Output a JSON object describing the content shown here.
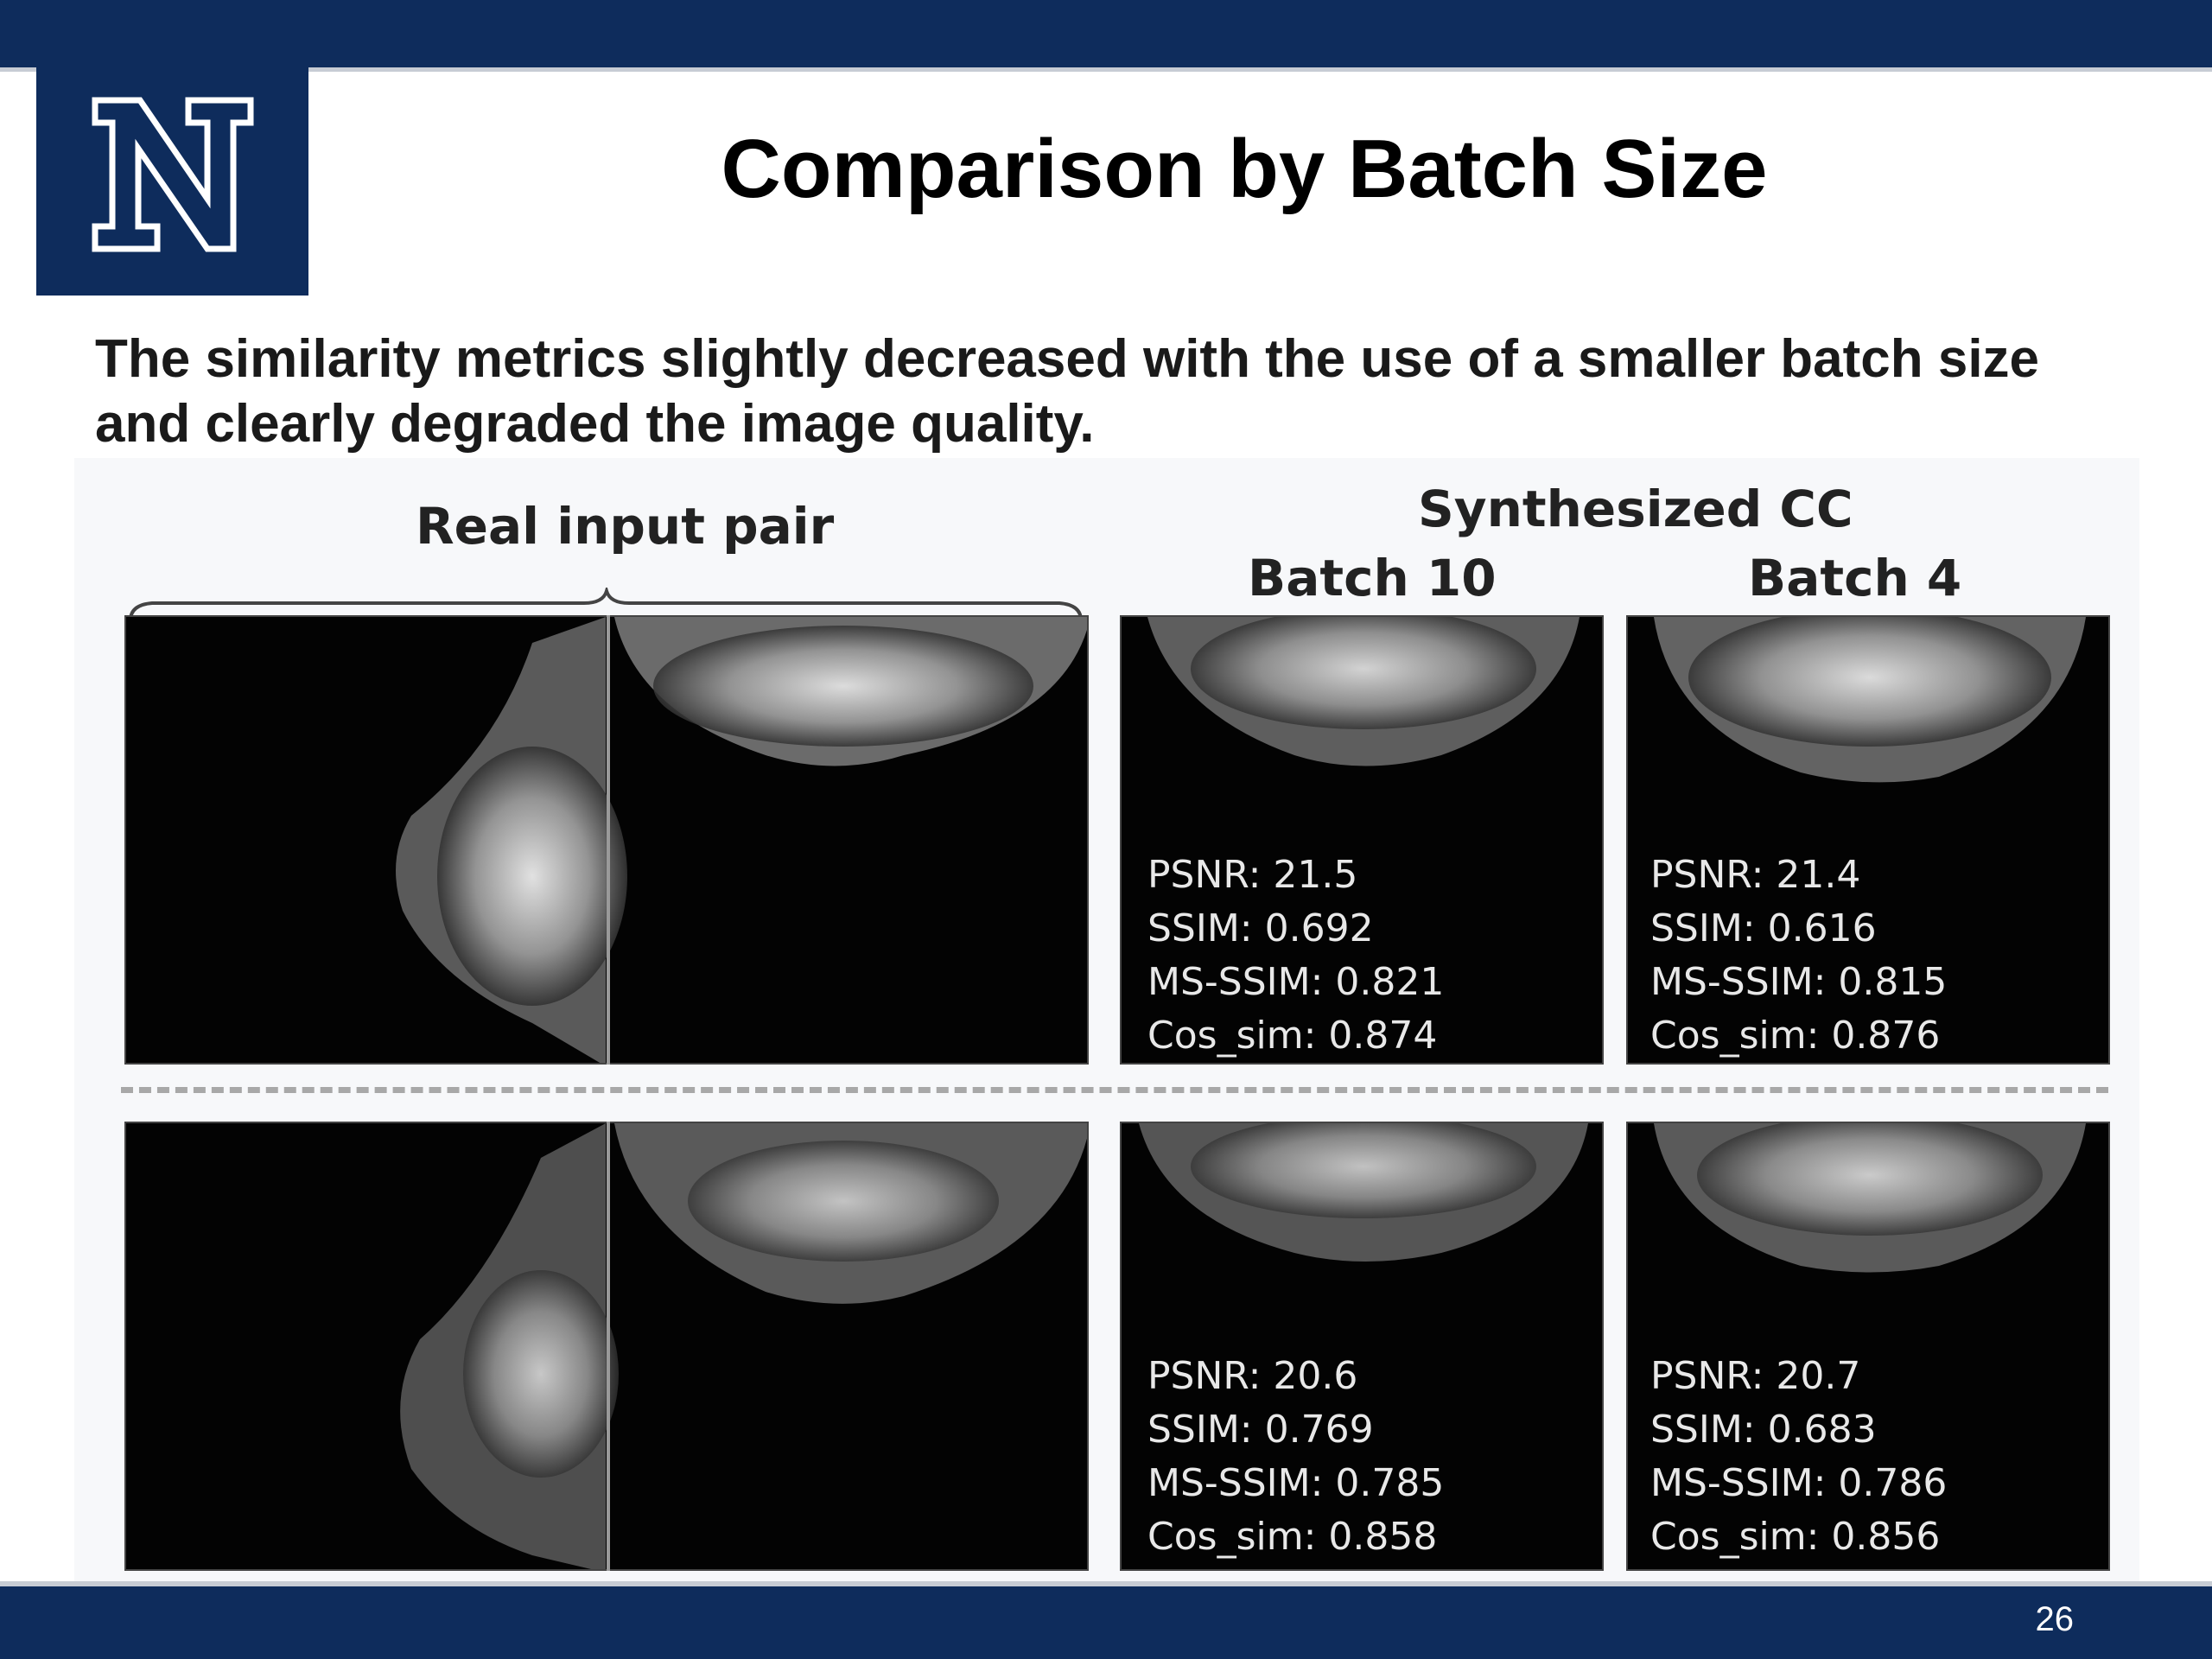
{
  "slide": {
    "title": "Comparison by Batch Size",
    "subtitle_line1": "The similarity metrics slightly decreased with the use of a smaller batch size",
    "subtitle_line2": "and clearly degraded the image quality.",
    "page_number": "26",
    "colors": {
      "brand_navy": "#0e2c5c",
      "accent_gray": "#c7ccd4"
    },
    "logo_icon": "university-n-logo"
  },
  "figure": {
    "real_label": "Real input pair",
    "synth_label": "Synthesized CC",
    "batch10_label": "Batch 10",
    "batch4_label": "Batch 4",
    "rows": [
      {
        "batch10": {
          "psnr": "PSNR: 21.5",
          "ssim": "SSIM: 0.692",
          "msssim": "MS-SSIM: 0.821",
          "cos": "Cos_sim: 0.874"
        },
        "batch4": {
          "psnr": "PSNR: 21.4",
          "ssim": "SSIM: 0.616",
          "msssim": "MS-SSIM: 0.815",
          "cos": "Cos_sim: 0.876"
        }
      },
      {
        "batch10": {
          "psnr": "PSNR: 20.6",
          "ssim": "SSIM: 0.769",
          "msssim": "MS-SSIM: 0.785",
          "cos": "Cos_sim: 0.858"
        },
        "batch4": {
          "psnr": "PSNR: 20.7",
          "ssim": "SSIM: 0.683",
          "msssim": "MS-SSIM: 0.786",
          "cos": "Cos_sim: 0.856"
        }
      }
    ]
  }
}
